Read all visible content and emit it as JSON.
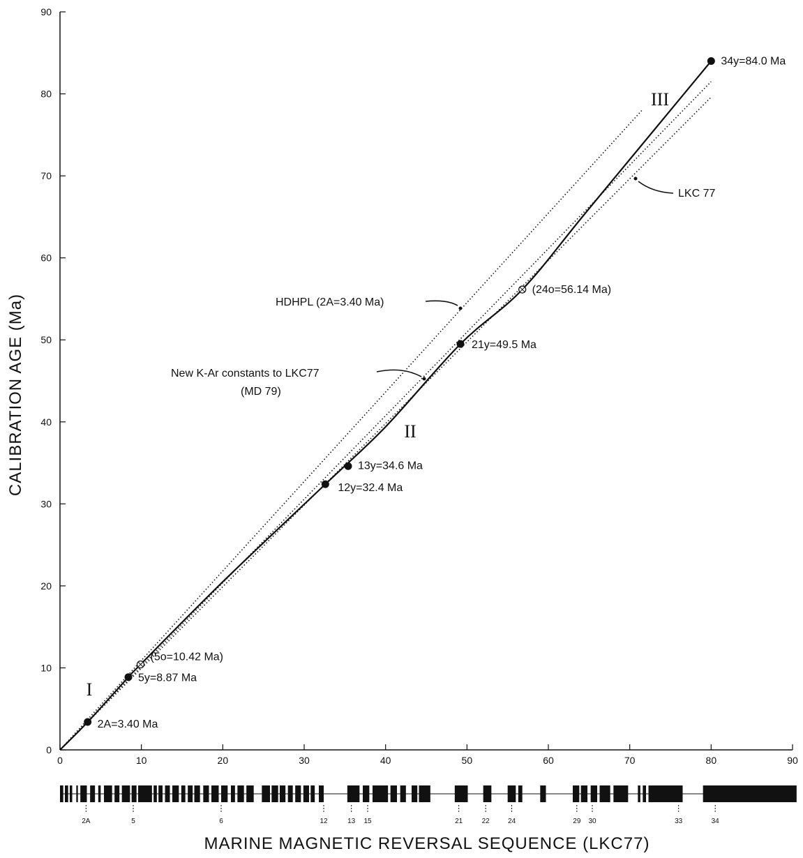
{
  "chart_data": {
    "type": "line",
    "title": "",
    "xlabel": "MARINE MAGNETIC REVERSAL SEQUENCE (LKC77)",
    "ylabel": "CALIBRATION AGE (Ma)",
    "xlim": [
      0,
      90
    ],
    "ylim": [
      0,
      90
    ],
    "x_ticks": [
      0,
      10,
      20,
      30,
      40,
      50,
      60,
      70,
      80,
      90
    ],
    "y_ticks": [
      0,
      10,
      20,
      30,
      40,
      50,
      60,
      70,
      80,
      90
    ],
    "grid": false,
    "series": [
      {
        "name": "",
        "style": "solid",
        "x": [
          0,
          3.4,
          8.4,
          9.9,
          20,
          32.6,
          40,
          49.2,
          56.8,
          65,
          80
        ],
        "y": [
          0,
          3.4,
          8.87,
          10.42,
          20.5,
          32.4,
          39.4,
          49.5,
          56.14,
          66,
          84.0
        ]
      },
      {
        "name": "HDHPL (2A=3.40 Ma)",
        "style": "dotted",
        "x": [
          0,
          71.5
        ],
        "y": [
          0,
          78
        ]
      },
      {
        "name": "New K-Ar constants to LKC77 (MD 79)",
        "style": "dotted",
        "x": [
          0,
          80
        ],
        "y": [
          0,
          81.5
        ]
      },
      {
        "name": "LKC77",
        "style": "dotted",
        "x": [
          0,
          80
        ],
        "y": [
          0,
          79.6
        ]
      }
    ],
    "points": [
      {
        "label": "2A=3.40 Ma",
        "x": 3.4,
        "y": 3.4,
        "marker": "filled"
      },
      {
        "label": "5y=8.87 Ma",
        "x": 8.4,
        "y": 8.87,
        "marker": "filled"
      },
      {
        "label": "(5o=10.42 Ma)",
        "x": 9.9,
        "y": 10.42,
        "marker": "open"
      },
      {
        "label": "12y=32.4 Ma",
        "x": 32.6,
        "y": 32.4,
        "marker": "filled"
      },
      {
        "label": "13y=34.6 Ma",
        "x": 35.4,
        "y": 34.6,
        "marker": "filled"
      },
      {
        "label": "21y=49.5 Ma",
        "x": 49.2,
        "y": 49.5,
        "marker": "filled"
      },
      {
        "label": "(24o=56.14 Ma)",
        "x": 56.8,
        "y": 56.14,
        "marker": "open"
      },
      {
        "label": "34y=84.0 Ma",
        "x": 80,
        "y": 84.0,
        "marker": "filled"
      }
    ],
    "annotations": [
      {
        "text": "HDHPL (2A=3.40 Ma)"
      },
      {
        "text": "New K-Ar constants to LKC77"
      },
      {
        "text": "(MD 79)"
      },
      {
        "text": "LKC 77"
      }
    ],
    "region_labels": [
      "I",
      "II",
      "III"
    ],
    "anomaly_labels": [
      {
        "label": "2A",
        "x": 3.2
      },
      {
        "label": "5",
        "x": 9.0
      },
      {
        "label": "6",
        "x": 19.8
      },
      {
        "label": "12",
        "x": 32.4
      },
      {
        "label": "13",
        "x": 35.8
      },
      {
        "label": "15",
        "x": 37.8
      },
      {
        "label": "21",
        "x": 49.0
      },
      {
        "label": "22",
        "x": 52.3
      },
      {
        "label": "24",
        "x": 55.5
      },
      {
        "label": "29",
        "x": 63.5
      },
      {
        "label": "30",
        "x": 65.4
      },
      {
        "label": "33",
        "x": 76.0
      },
      {
        "label": "34",
        "x": 80.5
      }
    ],
    "polarity_blocks": [
      [
        0.0,
        0.4
      ],
      [
        0.6,
        1.0
      ],
      [
        1.2,
        1.5
      ],
      [
        2.0,
        2.2
      ],
      [
        2.5,
        3.3
      ],
      [
        3.7,
        4.3
      ],
      [
        4.7,
        5.0
      ],
      [
        5.4,
        6.4
      ],
      [
        6.7,
        7.3
      ],
      [
        7.6,
        8.6
      ],
      [
        8.8,
        9.4
      ],
      [
        9.6,
        11.3
      ],
      [
        11.5,
        11.9
      ],
      [
        12.1,
        12.6
      ],
      [
        12.9,
        13.5
      ],
      [
        13.8,
        14.6
      ],
      [
        14.9,
        15.4
      ],
      [
        15.7,
        16.3
      ],
      [
        16.5,
        17.2
      ],
      [
        17.6,
        18.3
      ],
      [
        18.6,
        19.5
      ],
      [
        19.8,
        20.6
      ],
      [
        21.0,
        21.5
      ],
      [
        21.8,
        22.6
      ],
      [
        22.9,
        23.8
      ],
      [
        24.8,
        25.8
      ],
      [
        26.0,
        26.8
      ],
      [
        27.0,
        27.7
      ],
      [
        28.0,
        28.6
      ],
      [
        28.9,
        29.6
      ],
      [
        29.9,
        30.6
      ],
      [
        30.8,
        31.3
      ],
      [
        31.8,
        32.4
      ],
      [
        35.3,
        36.8
      ],
      [
        37.2,
        38.0
      ],
      [
        38.4,
        40.3
      ],
      [
        40.6,
        41.4
      ],
      [
        41.8,
        42.5
      ],
      [
        43.2,
        43.9
      ],
      [
        44.1,
        45.5
      ],
      [
        48.5,
        50.1
      ],
      [
        52.0,
        53.0
      ],
      [
        55.0,
        56.0
      ],
      [
        56.3,
        56.8
      ],
      [
        59.0,
        59.7
      ],
      [
        63.0,
        63.8
      ],
      [
        64.0,
        64.8
      ],
      [
        65.2,
        66.0
      ],
      [
        66.3,
        67.6
      ],
      [
        68.0,
        69.8
      ],
      [
        71.0,
        71.3
      ],
      [
        71.6,
        72.0
      ],
      [
        72.3,
        76.5
      ],
      [
        79.0,
        90.5
      ]
    ]
  }
}
